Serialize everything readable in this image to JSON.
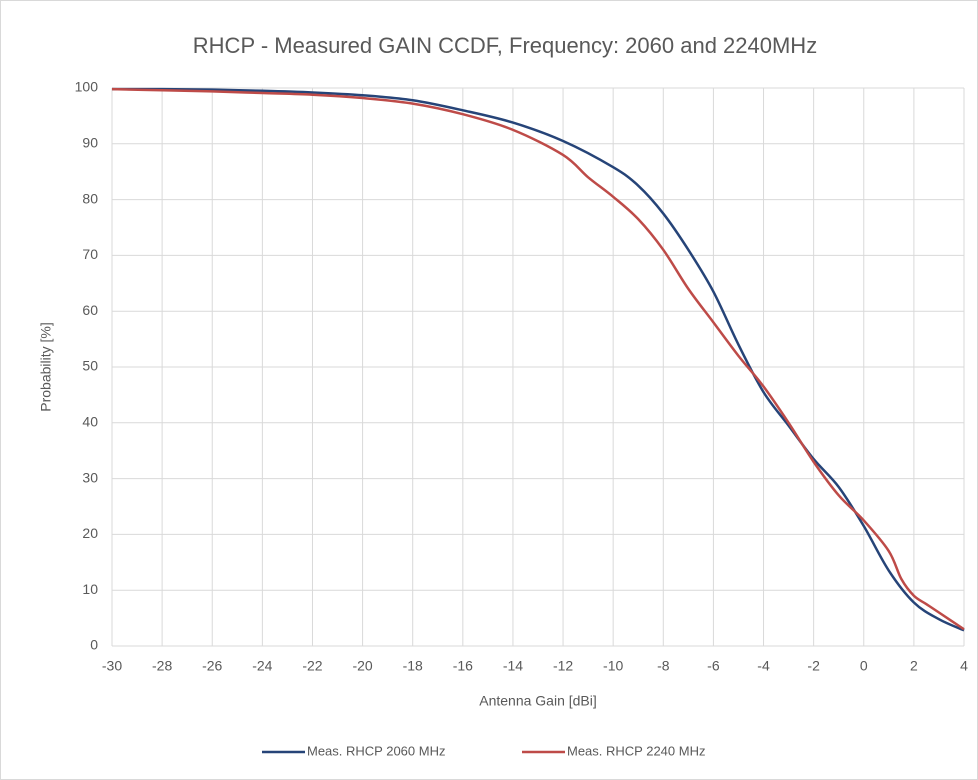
{
  "chart_data": {
    "type": "line",
    "title": "RHCP - Measured GAIN CCDF, Frequency: 2060 and 2240MHz",
    "x_label": "Antenna Gain [dBi]",
    "y_label": "Probability [%]",
    "xlim": [
      -30,
      4
    ],
    "xticks": [
      -30,
      -28,
      -26,
      -24,
      -22,
      -20,
      -18,
      -16,
      -14,
      -12,
      -10,
      -8,
      -6,
      -4,
      -2,
      0,
      2,
      4
    ],
    "ylim": [
      0,
      100
    ],
    "yticks": [
      0,
      10,
      20,
      30,
      40,
      50,
      60,
      70,
      80,
      90,
      100
    ],
    "grid": true,
    "legend": "bottom",
    "series": [
      {
        "name": "Meas. RHCP 2060 MHz",
        "color": "#264478",
        "x": [
          -30,
          -28,
          -26,
          -24,
          -22,
          -20,
          -18,
          -16,
          -14,
          -12,
          -10,
          -9,
          -8,
          -7,
          -6,
          -5,
          -4,
          -3,
          -2,
          -1,
          0,
          1,
          2,
          3,
          4
        ],
        "values": [
          99.8,
          99.8,
          99.7,
          99.5,
          99.2,
          98.7,
          97.8,
          96.0,
          93.8,
          90.5,
          85.8,
          82.5,
          77.5,
          71,
          63.5,
          54,
          45.5,
          39.5,
          33.5,
          28.5,
          21.5,
          13.5,
          7.8,
          4.8,
          2.8
        ]
      },
      {
        "name": "Meas. RHCP 2240 MHz",
        "color": "#be4b48",
        "x": [
          -30,
          -28,
          -26,
          -24,
          -22,
          -20,
          -18,
          -16,
          -14,
          -12,
          -11,
          -10,
          -9,
          -8,
          -7,
          -6,
          -5,
          -4,
          -3,
          -2,
          -1,
          0,
          1,
          1.5,
          2,
          2.5,
          3,
          4
        ],
        "values": [
          99.8,
          99.6,
          99.4,
          99.1,
          98.8,
          98.2,
          97.2,
          95.3,
          92.5,
          88,
          84,
          80.5,
          76.5,
          71,
          64,
          58,
          52,
          46.5,
          40,
          33,
          27,
          22.5,
          17,
          12,
          9,
          7.5,
          6,
          3
        ]
      }
    ]
  }
}
